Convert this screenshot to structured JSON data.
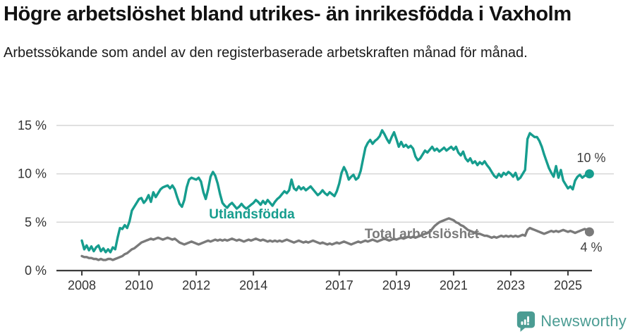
{
  "header": {
    "title": "Högre arbetslöshet bland utrikes- än inrikesfödda i Vaxholm",
    "subtitle": "Arbetssökande som andel av den registerbaserade arbetskraften månad för månad."
  },
  "chart_data": {
    "type": "line",
    "unit": "%",
    "x_start_year": 2008,
    "x_resolution": "monthly",
    "x_ticks": [
      2008,
      2010,
      2012,
      2014,
      2017,
      2019,
      2021,
      2023,
      2025
    ],
    "x_tick_labels": [
      "2008",
      "2010",
      "2012",
      "2014",
      "2017",
      "2019",
      "2021",
      "2023",
      "2025"
    ],
    "y_ticks": [
      0,
      5,
      15,
      10
    ],
    "y_tick_labels": [
      "0 %",
      "5 %",
      "15 %",
      "10 %"
    ],
    "ylim": [
      0,
      15.8
    ],
    "grid": "horizontal-only",
    "grid_color": "#d9d9d9",
    "axis_color": "#3c3c3c",
    "tick_color": "#333333",
    "end_label_color": "#3d3d3d",
    "series": [
      {
        "id": "utlandsfodda",
        "name": "Utlandsfödda",
        "color": "#169d8e",
        "end_label": "10 %",
        "values": [
          3.1,
          2.2,
          2.6,
          2.1,
          2.5,
          2.0,
          2.4,
          2.6,
          2.0,
          2.3,
          1.9,
          2.2,
          1.9,
          2.4,
          2.2,
          3.4,
          4.4,
          4.3,
          4.7,
          4.4,
          5.1,
          6.2,
          6.6,
          7.0,
          7.4,
          7.5,
          7.0,
          7.3,
          7.8,
          7.1,
          8.1,
          7.6,
          8.0,
          8.4,
          8.6,
          8.7,
          8.8,
          8.5,
          8.8,
          8.4,
          7.6,
          6.9,
          6.6,
          7.3,
          8.6,
          9.4,
          9.6,
          9.5,
          9.4,
          9.6,
          9.2,
          8.1,
          7.4,
          8.4,
          9.7,
          10.2,
          9.8,
          9.0,
          7.9,
          7.0,
          6.7,
          6.5,
          6.8,
          7.0,
          6.7,
          6.4,
          6.6,
          6.9,
          6.6,
          6.4,
          6.6,
          6.8,
          7.0,
          7.3,
          7.1,
          6.8,
          7.2,
          6.9,
          7.3,
          7.0,
          6.7,
          7.1,
          7.4,
          7.6,
          7.9,
          8.2,
          8.0,
          8.3,
          9.4,
          8.5,
          8.3,
          8.7,
          8.4,
          8.6,
          8.3,
          8.5,
          8.7,
          8.4,
          8.1,
          7.8,
          8.0,
          8.3,
          8.0,
          7.8,
          8.1,
          7.9,
          7.7,
          8.2,
          9.0,
          10.1,
          10.7,
          10.2,
          9.4,
          9.7,
          9.9,
          9.4,
          9.6,
          10.3,
          11.5,
          12.7,
          13.2,
          13.5,
          13.1,
          13.4,
          13.6,
          13.9,
          14.5,
          14.1,
          13.6,
          13.2,
          13.8,
          14.3,
          13.6,
          12.8,
          13.3,
          12.8,
          13.0,
          12.7,
          12.9,
          12.6,
          11.8,
          11.4,
          11.6,
          12.0,
          12.4,
          12.2,
          12.5,
          12.8,
          12.4,
          12.6,
          12.3,
          12.5,
          12.7,
          12.4,
          12.6,
          12.8,
          12.5,
          12.8,
          12.2,
          11.9,
          12.3,
          11.6,
          11.3,
          11.6,
          11.1,
          11.3,
          10.9,
          11.2,
          11.0,
          11.3,
          10.9,
          10.6,
          10.2,
          9.8,
          9.6,
          10.0,
          9.7,
          10.1,
          9.9,
          10.2,
          10.0,
          9.7,
          10.1,
          9.4,
          9.6,
          10.0,
          10.4,
          13.6,
          14.2,
          14.0,
          13.8,
          13.8,
          13.4,
          12.8,
          12.0,
          11.3,
          10.6,
          10.1,
          9.7,
          10.8,
          9.6,
          10.4,
          9.3,
          8.9,
          8.5,
          8.7,
          8.4,
          9.3,
          9.7,
          9.9,
          9.6,
          9.8,
          9.9,
          10.0
        ]
      },
      {
        "id": "total",
        "name": "Total arbetslöshet",
        "color": "#7a7a7a",
        "end_label": "4 %",
        "values": [
          1.5,
          1.4,
          1.4,
          1.3,
          1.3,
          1.2,
          1.2,
          1.1,
          1.2,
          1.1,
          1.1,
          1.2,
          1.2,
          1.1,
          1.2,
          1.3,
          1.4,
          1.5,
          1.7,
          1.8,
          2.0,
          2.2,
          2.3,
          2.5,
          2.7,
          2.9,
          3.0,
          3.1,
          3.2,
          3.3,
          3.2,
          3.3,
          3.4,
          3.3,
          3.2,
          3.3,
          3.4,
          3.3,
          3.2,
          3.3,
          3.1,
          2.9,
          2.8,
          2.7,
          2.8,
          2.9,
          3.0,
          2.9,
          2.8,
          2.7,
          2.8,
          2.9,
          3.0,
          3.1,
          3.0,
          3.1,
          3.2,
          3.1,
          3.2,
          3.1,
          3.2,
          3.1,
          3.2,
          3.3,
          3.2,
          3.1,
          3.2,
          3.1,
          3.0,
          3.1,
          3.2,
          3.1,
          3.2,
          3.3,
          3.2,
          3.1,
          3.2,
          3.1,
          3.0,
          3.1,
          3.0,
          3.1,
          3.0,
          3.1,
          3.0,
          3.1,
          3.2,
          3.1,
          3.0,
          2.9,
          3.0,
          3.1,
          3.0,
          2.9,
          3.0,
          2.9,
          3.0,
          3.1,
          3.0,
          2.9,
          2.8,
          2.9,
          2.8,
          2.7,
          2.8,
          2.7,
          2.8,
          2.9,
          2.8,
          2.9,
          3.0,
          2.9,
          2.8,
          2.7,
          2.8,
          2.9,
          3.0,
          2.9,
          3.0,
          3.1,
          3.0,
          3.1,
          3.2,
          3.1,
          3.0,
          3.1,
          3.2,
          3.3,
          3.2,
          3.1,
          3.2,
          3.3,
          3.2,
          3.3,
          3.4,
          3.3,
          3.4,
          3.5,
          3.4,
          3.5,
          3.4,
          3.5,
          3.6,
          3.7,
          3.8,
          3.9,
          4.0,
          4.3,
          4.6,
          4.8,
          5.0,
          5.1,
          5.2,
          5.3,
          5.4,
          5.3,
          5.2,
          5.0,
          4.9,
          4.7,
          4.6,
          4.4,
          4.2,
          4.1,
          4.0,
          3.9,
          3.8,
          3.8,
          3.7,
          3.6,
          3.6,
          3.5,
          3.4,
          3.5,
          3.4,
          3.5,
          3.6,
          3.5,
          3.6,
          3.5,
          3.6,
          3.5,
          3.6,
          3.5,
          3.6,
          3.7,
          3.6,
          4.2,
          4.4,
          4.3,
          4.2,
          4.1,
          4.0,
          3.9,
          3.8,
          3.9,
          4.0,
          4.1,
          4.0,
          4.1,
          4.0,
          4.1,
          4.2,
          4.1,
          4.0,
          4.1,
          4.0,
          3.9,
          4.0,
          4.1,
          4.2,
          4.3,
          4.2,
          4.0
        ]
      }
    ]
  },
  "footer": {
    "brand": "Newsworthy",
    "brand_color": "#4b9c93",
    "logo_icon": "newsworthy-speech-bubble-chart-icon"
  }
}
